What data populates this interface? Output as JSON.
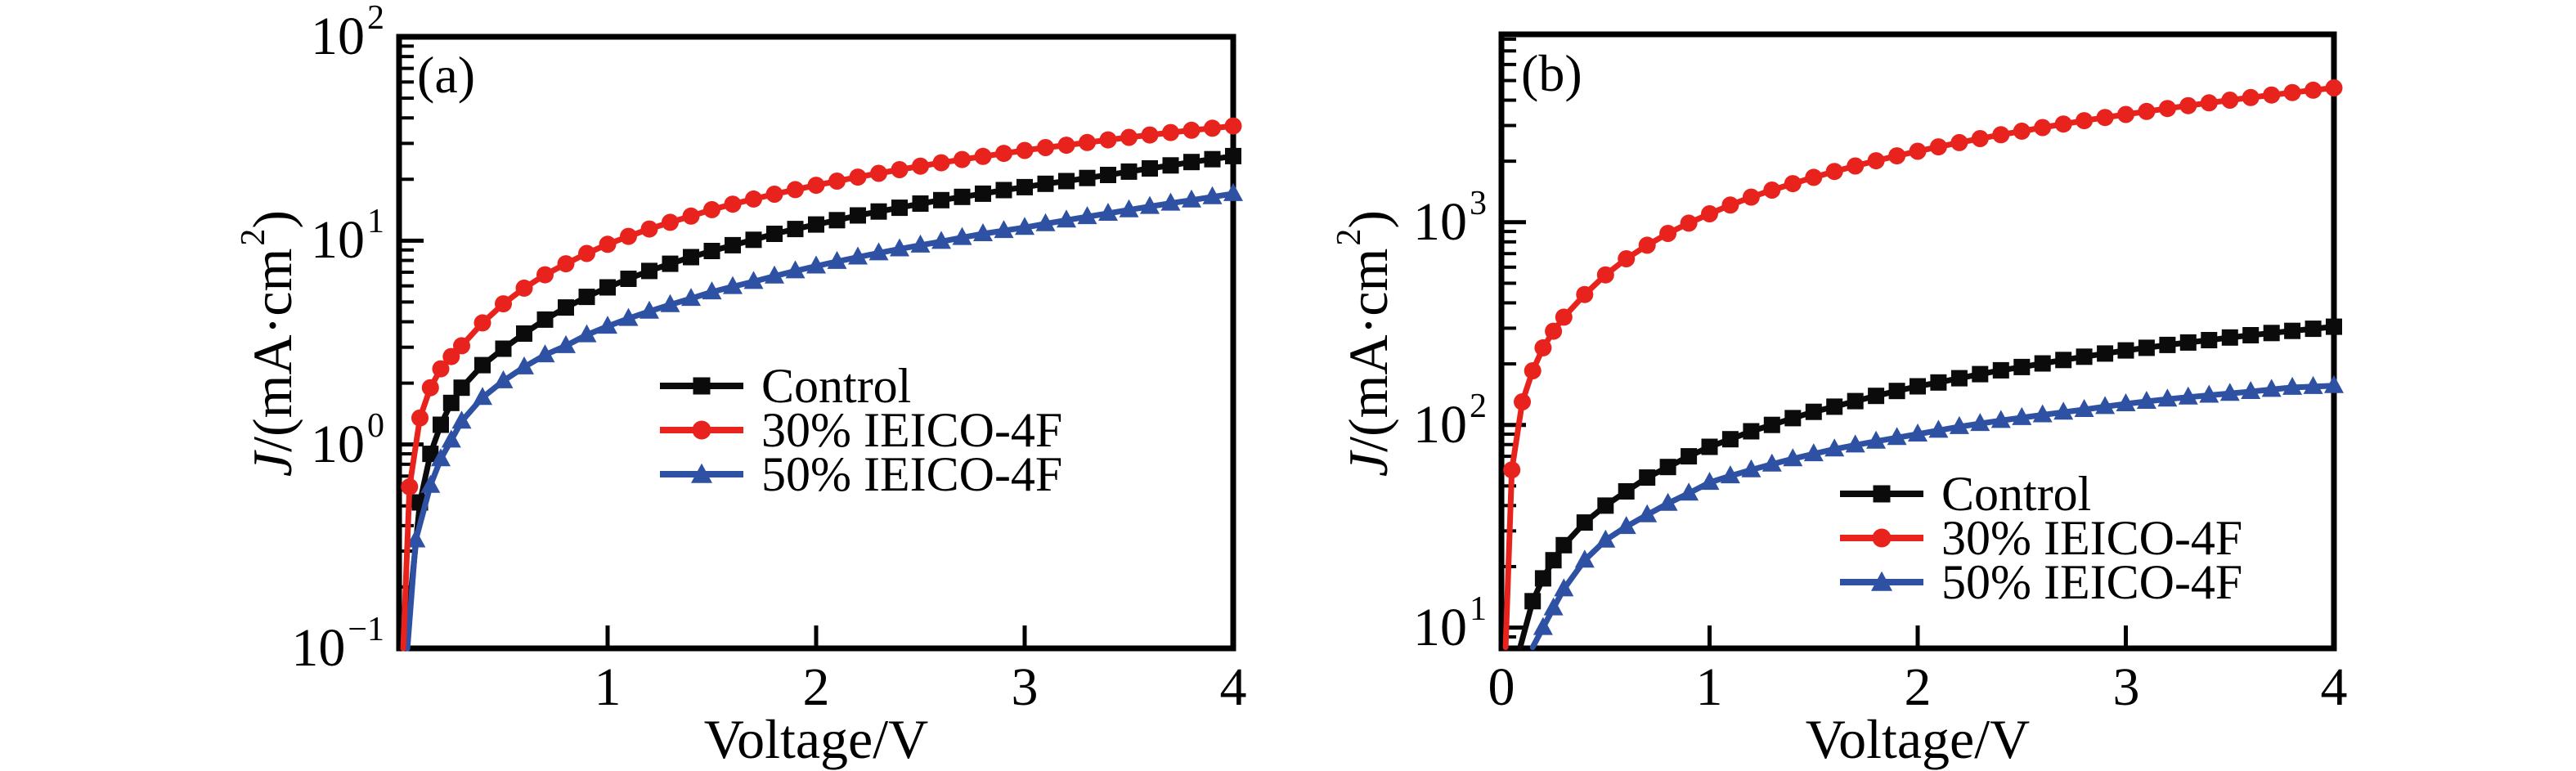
{
  "figure": {
    "background": "#ffffff"
  },
  "chart_data": [
    {
      "type": "line",
      "panel_label": "(a)",
      "xlabel": "Voltage/V",
      "ylabel_parts": {
        "italic": "J",
        "pre": "/(mA·cm",
        "sup": "2",
        "post": ")"
      },
      "x_range": [
        0,
        4
      ],
      "x_ticks": [
        1,
        2,
        3,
        4
      ],
      "y_scale": "log",
      "y_range": [
        0.1,
        100
      ],
      "y_ticks": [
        {
          "base": "10",
          "exp": "2"
        },
        {
          "base": "10",
          "exp": "1"
        },
        {
          "base": "10",
          "exp": "0"
        },
        {
          "base": "10",
          "exp": "−1"
        }
      ],
      "grid": false,
      "legend_position": "inside-center",
      "series": [
        {
          "name": "Control",
          "color": "#0b0b0b",
          "marker": "square",
          "x": [
            0.03,
            0.1,
            0.15,
            0.2,
            0.25,
            0.3,
            0.4,
            0.5,
            0.6,
            0.7,
            0.8,
            0.9,
            1.0,
            1.1,
            1.2,
            1.3,
            1.4,
            1.5,
            1.6,
            1.7,
            1.8,
            1.9,
            2.0,
            2.1,
            2.2,
            2.3,
            2.4,
            2.5,
            2.6,
            2.7,
            2.8,
            2.9,
            3.0,
            3.1,
            3.2,
            3.3,
            3.4,
            3.5,
            3.6,
            3.7,
            3.8,
            3.9,
            4.0
          ],
          "y": [
            0.1,
            0.52,
            0.9,
            1.25,
            1.6,
            1.9,
            2.45,
            2.95,
            3.5,
            4.1,
            4.7,
            5.3,
            5.9,
            6.5,
            7.1,
            7.7,
            8.3,
            8.9,
            9.5,
            10.1,
            10.8,
            11.4,
            12.0,
            12.6,
            13.3,
            13.9,
            14.5,
            15.2,
            15.8,
            16.4,
            17.0,
            17.7,
            18.3,
            19.0,
            19.6,
            20.3,
            21.0,
            21.8,
            22.6,
            23.4,
            24.3,
            25.1,
            26.0
          ]
        },
        {
          "name": "30% IEICO-4F",
          "color": "#e8231e",
          "marker": "circle",
          "x": [
            0.02,
            0.05,
            0.1,
            0.15,
            0.2,
            0.25,
            0.3,
            0.4,
            0.5,
            0.6,
            0.7,
            0.8,
            0.9,
            1.0,
            1.1,
            1.2,
            1.3,
            1.4,
            1.5,
            1.6,
            1.7,
            1.8,
            1.9,
            2.0,
            2.1,
            2.2,
            2.3,
            2.4,
            2.5,
            2.6,
            2.7,
            2.8,
            2.9,
            3.0,
            3.1,
            3.2,
            3.3,
            3.4,
            3.5,
            3.6,
            3.7,
            3.8,
            3.9,
            4.0
          ],
          "y": [
            0.1,
            0.62,
            1.35,
            1.9,
            2.35,
            2.7,
            3.05,
            3.95,
            4.9,
            5.85,
            6.8,
            7.7,
            8.65,
            9.6,
            10.5,
            11.4,
            12.3,
            13.2,
            14.2,
            15.1,
            16.0,
            16.9,
            17.8,
            18.7,
            19.6,
            20.5,
            21.4,
            22.3,
            23.2,
            24.1,
            25.0,
            25.9,
            26.8,
            27.7,
            28.6,
            29.4,
            30.3,
            31.2,
            32.1,
            33.0,
            33.9,
            34.8,
            35.6,
            36.5
          ]
        },
        {
          "name": "50% IEICO-4F",
          "color": "#2e51a4",
          "marker": "triangle",
          "x": [
            0.04,
            0.08,
            0.15,
            0.2,
            0.25,
            0.3,
            0.4,
            0.5,
            0.6,
            0.7,
            0.8,
            0.9,
            1.0,
            1.1,
            1.2,
            1.3,
            1.4,
            1.5,
            1.6,
            1.7,
            1.8,
            1.9,
            2.0,
            2.1,
            2.2,
            2.3,
            2.4,
            2.5,
            2.6,
            2.7,
            2.8,
            2.9,
            3.0,
            3.1,
            3.2,
            3.3,
            3.4,
            3.5,
            3.6,
            3.7,
            3.8,
            3.9,
            4.0
          ],
          "y": [
            0.1,
            0.34,
            0.63,
            0.85,
            1.05,
            1.3,
            1.7,
            2.05,
            2.4,
            2.75,
            3.05,
            3.45,
            3.8,
            4.15,
            4.5,
            4.85,
            5.2,
            5.6,
            5.95,
            6.3,
            6.7,
            7.1,
            7.5,
            7.9,
            8.3,
            8.7,
            9.1,
            9.5,
            9.9,
            10.35,
            10.8,
            11.2,
            11.6,
            12.1,
            12.6,
            13.1,
            13.6,
            14.15,
            14.7,
            15.25,
            15.8,
            16.4,
            17.0
          ]
        }
      ]
    },
    {
      "type": "line",
      "panel_label": "(b)",
      "xlabel": "Voltage/V",
      "ylabel_parts": {
        "italic": "J",
        "pre": "/(mA·cm",
        "sup": "2",
        "post": ")"
      },
      "x_range": [
        0,
        4
      ],
      "x_ticks": [
        0,
        1,
        2,
        3,
        4
      ],
      "y_scale": "log",
      "y_range": [
        7.9,
        8450
      ],
      "y_ticks": [
        {
          "base": "10",
          "exp": "3"
        },
        {
          "base": "10",
          "exp": "2"
        },
        {
          "base": "10",
          "exp": "1"
        }
      ],
      "grid": false,
      "legend_position": "inside-lower-right",
      "series": [
        {
          "name": "Control",
          "color": "#0b0b0b",
          "marker": "square",
          "x": [
            0.09,
            0.15,
            0.2,
            0.25,
            0.3,
            0.4,
            0.5,
            0.6,
            0.7,
            0.8,
            0.9,
            1.0,
            1.1,
            1.2,
            1.3,
            1.4,
            1.5,
            1.6,
            1.7,
            1.8,
            1.9,
            2.0,
            2.1,
            2.2,
            2.3,
            2.4,
            2.5,
            2.6,
            2.7,
            2.8,
            2.9,
            3.0,
            3.1,
            3.2,
            3.3,
            3.4,
            3.5,
            3.6,
            3.7,
            3.8,
            3.9,
            4.0
          ],
          "y": [
            8,
            13.5,
            17.5,
            21.5,
            25.5,
            33,
            40,
            47,
            55,
            62,
            70,
            78,
            85,
            93,
            100,
            108,
            116,
            123,
            131,
            139,
            147,
            155,
            162,
            170,
            178,
            186,
            193,
            201,
            209,
            217,
            225,
            233,
            240,
            248,
            255,
            262,
            270,
            277,
            284,
            291,
            298,
            305
          ]
        },
        {
          "name": "30% IEICO-4F",
          "color": "#e8231e",
          "marker": "circle",
          "x": [
            0.02,
            0.05,
            0.1,
            0.15,
            0.2,
            0.25,
            0.3,
            0.4,
            0.5,
            0.6,
            0.7,
            0.8,
            0.9,
            1.0,
            1.1,
            1.2,
            1.3,
            1.4,
            1.5,
            1.6,
            1.7,
            1.8,
            1.9,
            2.0,
            2.1,
            2.2,
            2.3,
            2.4,
            2.5,
            2.6,
            2.7,
            2.8,
            2.9,
            3.0,
            3.1,
            3.2,
            3.3,
            3.4,
            3.5,
            3.6,
            3.7,
            3.8,
            3.9,
            4.0
          ],
          "y": [
            8,
            60,
            130,
            185,
            240,
            290,
            340,
            440,
            550,
            660,
            770,
            880,
            990,
            1100,
            1215,
            1330,
            1440,
            1550,
            1665,
            1780,
            1895,
            2010,
            2125,
            2240,
            2355,
            2470,
            2585,
            2700,
            2815,
            2930,
            3050,
            3170,
            3285,
            3400,
            3520,
            3640,
            3760,
            3880,
            4000,
            4120,
            4240,
            4360,
            4480,
            4600
          ]
        },
        {
          "name": "50% IEICO-4F",
          "color": "#2e51a4",
          "marker": "triangle",
          "x": [
            0.15,
            0.2,
            0.25,
            0.3,
            0.4,
            0.5,
            0.6,
            0.7,
            0.8,
            0.9,
            1.0,
            1.1,
            1.2,
            1.3,
            1.4,
            1.5,
            1.6,
            1.7,
            1.8,
            1.9,
            2.0,
            2.1,
            2.2,
            2.3,
            2.4,
            2.5,
            2.6,
            2.7,
            2.8,
            2.9,
            3.0,
            3.1,
            3.2,
            3.3,
            3.4,
            3.5,
            3.6,
            3.7,
            3.8,
            3.9,
            4.0
          ],
          "y": [
            8,
            10,
            12.5,
            15.5,
            21.5,
            27,
            31.5,
            36,
            41,
            46,
            52,
            56,
            60,
            64,
            68,
            72,
            76,
            79.5,
            83,
            86.5,
            90,
            94,
            98,
            101.5,
            105,
            108.5,
            112,
            115.5,
            119,
            123,
            127,
            130.5,
            134,
            137,
            140,
            143,
            146,
            149.5,
            153,
            154.5,
            156
          ]
        }
      ]
    }
  ]
}
